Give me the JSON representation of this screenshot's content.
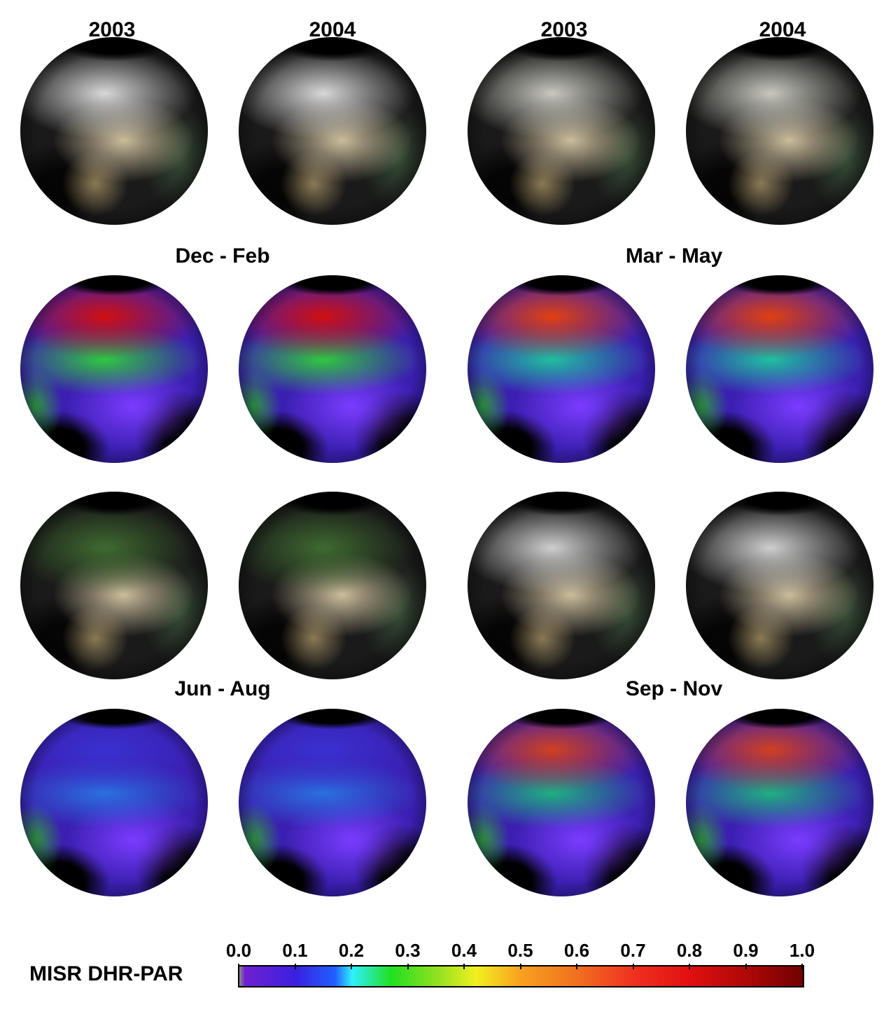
{
  "column_years": [
    "2003",
    "2004",
    "2003",
    "2004"
  ],
  "season_labels": [
    "Dec - Feb",
    "Mar - May",
    "Jun - Aug",
    "Sep - Nov"
  ],
  "panels": [
    {
      "season": "Dec - Feb",
      "year": "2003",
      "type": "natural-color"
    },
    {
      "season": "Dec - Feb",
      "year": "2004",
      "type": "natural-color"
    },
    {
      "season": "Mar - May",
      "year": "2003",
      "type": "natural-color"
    },
    {
      "season": "Mar - May",
      "year": "2004",
      "type": "natural-color"
    },
    {
      "season": "Dec - Feb",
      "year": "2003",
      "type": "DHR-PAR"
    },
    {
      "season": "Dec - Feb",
      "year": "2004",
      "type": "DHR-PAR"
    },
    {
      "season": "Mar - May",
      "year": "2003",
      "type": "DHR-PAR"
    },
    {
      "season": "Mar - May",
      "year": "2004",
      "type": "DHR-PAR"
    },
    {
      "season": "Jun - Aug",
      "year": "2003",
      "type": "natural-color"
    },
    {
      "season": "Jun - Aug",
      "year": "2004",
      "type": "natural-color"
    },
    {
      "season": "Sep - Nov",
      "year": "2003",
      "type": "natural-color"
    },
    {
      "season": "Sep - Nov",
      "year": "2004",
      "type": "natural-color"
    },
    {
      "season": "Jun - Aug",
      "year": "2003",
      "type": "DHR-PAR"
    },
    {
      "season": "Jun - Aug",
      "year": "2004",
      "type": "DHR-PAR"
    },
    {
      "season": "Sep - Nov",
      "year": "2003",
      "type": "DHR-PAR"
    },
    {
      "season": "Sep - Nov",
      "year": "2004",
      "type": "DHR-PAR"
    }
  ],
  "colorbar": {
    "label": "MISR DHR-PAR",
    "range": [
      0.0,
      1.0
    ],
    "ticks": [
      "0.0",
      "0.1",
      "0.2",
      "0.3",
      "0.4",
      "0.5",
      "0.6",
      "0.7",
      "0.8",
      "0.9",
      "1.0"
    ],
    "colormap": [
      "#7020d0",
      "#3a20e0",
      "#30f0ff",
      "#20e020",
      "#f0f020",
      "#f8a020",
      "#f03020",
      "#700000"
    ]
  }
}
